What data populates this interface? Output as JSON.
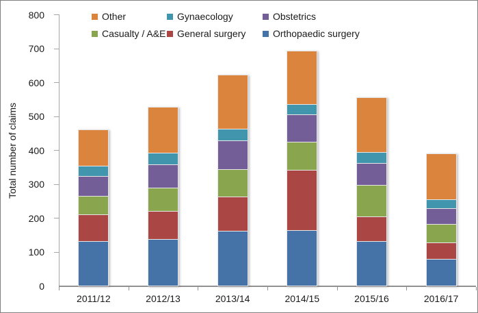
{
  "figure": {
    "y_axis_title": "Total number of claims"
  },
  "chart_data": {
    "type": "bar",
    "subtype": "stacked-column",
    "title": "",
    "xlabel": "",
    "ylabel": "Total number of claims",
    "ylim": [
      0,
      800
    ],
    "ytick_step": 100,
    "grid": false,
    "legend_position": "top-inside",
    "categories": [
      "2011/12",
      "2012/13",
      "2013/14",
      "2014/15",
      "2015/16",
      "2016/17"
    ],
    "series": [
      {
        "name": "Orthopaedic surgery",
        "color": "#4572A7",
        "values": [
          132,
          137,
          162,
          163,
          132,
          78
        ]
      },
      {
        "name": "General surgery",
        "color": "#AA4643",
        "values": [
          78,
          82,
          101,
          178,
          72,
          49
        ]
      },
      {
        "name": "Casualty / A&E",
        "color": "#89A54E",
        "values": [
          55,
          69,
          79,
          82,
          93,
          54
        ]
      },
      {
        "name": "Obstetrics",
        "color": "#745E98",
        "values": [
          58,
          69,
          86,
          81,
          65,
          46
        ]
      },
      {
        "name": "Gynaecology",
        "color": "#4196AE",
        "values": [
          31,
          35,
          34,
          30,
          31,
          27
        ]
      },
      {
        "name": "Other",
        "color": "#DB843D",
        "values": [
          108,
          136,
          161,
          161,
          164,
          137
        ]
      }
    ],
    "stack_totals": [
      462,
      528,
      623,
      695,
      557,
      391
    ],
    "legend_rows": [
      [
        "Other",
        "Gynaecology",
        "Obstetrics"
      ],
      [
        "Casualty / A&E",
        "General surgery",
        "Orthopaedic surgery"
      ]
    ],
    "axis_colors": {
      "line": "#a6a6a6",
      "baseline": "#909090",
      "text": "#1a1a1a"
    }
  }
}
